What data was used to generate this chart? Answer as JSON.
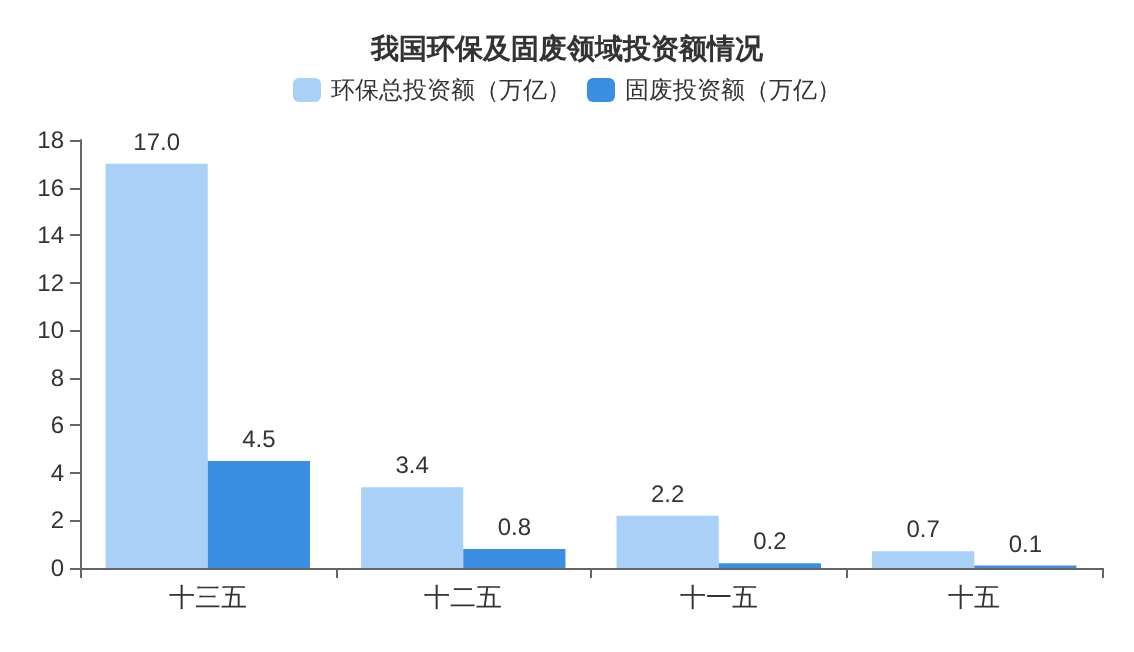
{
  "chart_data": {
    "type": "bar",
    "title": "我国环保及固废领域投资额情况",
    "categories": [
      "十三五",
      "十二五",
      "十一五",
      "十五"
    ],
    "series": [
      {
        "name": "环保总投资额（万亿）",
        "color": "#a9d1f7",
        "values": [
          17.0,
          3.4,
          2.2,
          0.7
        ],
        "value_labels": [
          "17.0",
          "3.4",
          "2.2",
          "0.7"
        ]
      },
      {
        "name": "固废投资额（万亿）",
        "color": "#3b8fe3",
        "values": [
          4.5,
          0.8,
          0.2,
          0.1
        ],
        "value_labels": [
          "4.5",
          "0.8",
          "0.2",
          "0.1"
        ]
      }
    ],
    "ylim": [
      0,
      18
    ],
    "yticks": [
      0,
      2,
      4,
      6,
      8,
      10,
      12,
      14,
      16,
      18
    ],
    "grid": false,
    "legend": "top"
  }
}
